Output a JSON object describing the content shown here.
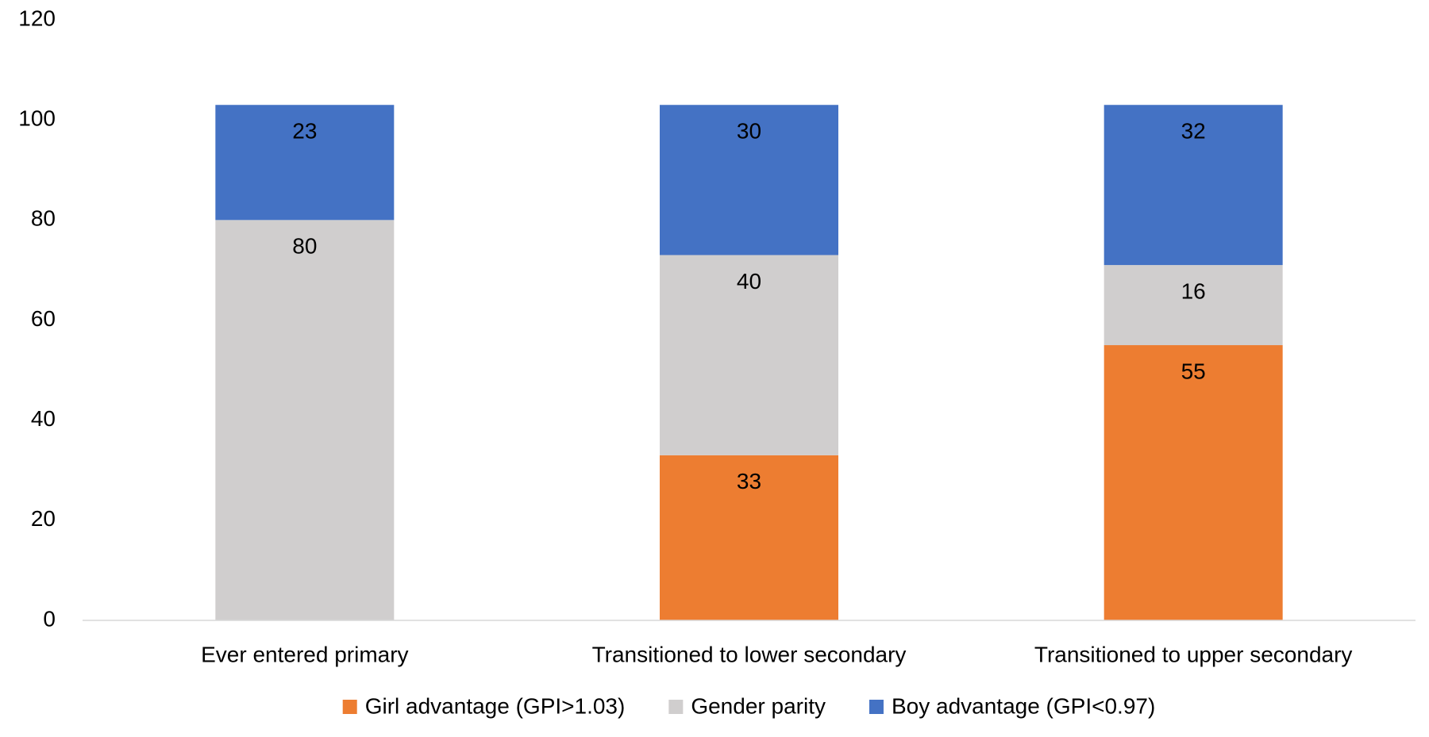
{
  "chart_data": {
    "type": "stacked_bar",
    "categories": [
      "Ever entered primary",
      "Transitioned to lower secondary",
      "Transitioned to upper secondary"
    ],
    "series": [
      {
        "name": "Girl advantage (GPI>1.03)",
        "color": "#ed7d31",
        "values": [
          null,
          33,
          55
        ]
      },
      {
        "name": "Gender parity",
        "color": "#d0cece",
        "values": [
          80,
          40,
          16
        ]
      },
      {
        "name": "Boy advantage (GPI<0.97)",
        "color": "#4472c4",
        "values": [
          23,
          30,
          32
        ]
      }
    ],
    "ylim": [
      0,
      120
    ],
    "yticks": [
      0,
      20,
      40,
      60,
      80,
      100,
      120
    ],
    "grid": false,
    "legend": "bottom"
  }
}
